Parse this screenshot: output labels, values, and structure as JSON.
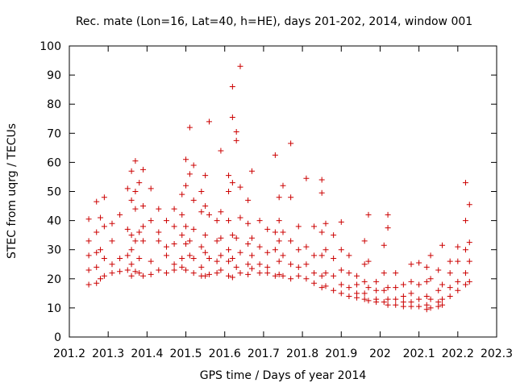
{
  "chart_data": {
    "type": "scatter",
    "title": "Rec. mate (Lon=16, Lat=40, h=HE), days 201-202, 2014, window 001",
    "xlabel": "GPS time / Days of year 2014",
    "ylabel": "STEC from uqrg / TECUs",
    "xlim": [
      201.2,
      202.3
    ],
    "ylim": [
      0,
      100
    ],
    "xticks": [
      "201.2",
      "201.3",
      "201.4",
      "201.5",
      "201.6",
      "201.7",
      "201.8",
      "201.9",
      "202",
      "202.1",
      "202.2",
      "202.3"
    ],
    "yticks": [
      "0",
      "10",
      "20",
      "30",
      "40",
      "50",
      "60",
      "70",
      "80",
      "90",
      "100"
    ],
    "grid": false,
    "legend": "none",
    "marker": "plus",
    "color": "#cc0000",
    "series": [
      {
        "points": [
          [
            201.25,
            40.5
          ],
          [
            201.25,
            33
          ],
          [
            201.25,
            28
          ],
          [
            201.25,
            23
          ],
          [
            201.25,
            18
          ],
          [
            201.27,
            46.5
          ],
          [
            201.27,
            36
          ],
          [
            201.27,
            29
          ],
          [
            201.27,
            24
          ],
          [
            201.27,
            18.5
          ],
          [
            201.28,
            41
          ],
          [
            201.28,
            30
          ],
          [
            201.28,
            20
          ],
          [
            201.29,
            48
          ],
          [
            201.29,
            38
          ],
          [
            201.29,
            27
          ],
          [
            201.29,
            21
          ],
          [
            201.31,
            39
          ],
          [
            201.31,
            33
          ],
          [
            201.31,
            25
          ],
          [
            201.31,
            22
          ],
          [
            201.33,
            42
          ],
          [
            201.33,
            27
          ],
          [
            201.33,
            22.5
          ],
          [
            201.35,
            51
          ],
          [
            201.35,
            37
          ],
          [
            201.35,
            28
          ],
          [
            201.35,
            23
          ],
          [
            201.36,
            57
          ],
          [
            201.36,
            47
          ],
          [
            201.36,
            35
          ],
          [
            201.36,
            30
          ],
          [
            201.36,
            25
          ],
          [
            201.36,
            21
          ],
          [
            201.37,
            60.5
          ],
          [
            201.37,
            50
          ],
          [
            201.37,
            44
          ],
          [
            201.37,
            33
          ],
          [
            201.37,
            22.5
          ],
          [
            201.38,
            53
          ],
          [
            201.38,
            36
          ],
          [
            201.38,
            27
          ],
          [
            201.38,
            22
          ],
          [
            201.39,
            57.5
          ],
          [
            201.39,
            45
          ],
          [
            201.39,
            38
          ],
          [
            201.39,
            33
          ],
          [
            201.39,
            21
          ],
          [
            201.41,
            51
          ],
          [
            201.41,
            40
          ],
          [
            201.41,
            26
          ],
          [
            201.41,
            21.5
          ],
          [
            201.43,
            44
          ],
          [
            201.43,
            36
          ],
          [
            201.43,
            33
          ],
          [
            201.43,
            23
          ],
          [
            201.45,
            40
          ],
          [
            201.45,
            31
          ],
          [
            201.45,
            28
          ],
          [
            201.45,
            22
          ],
          [
            201.47,
            44
          ],
          [
            201.47,
            38
          ],
          [
            201.47,
            32
          ],
          [
            201.47,
            25
          ],
          [
            201.47,
            23
          ],
          [
            201.49,
            49
          ],
          [
            201.49,
            42
          ],
          [
            201.49,
            35
          ],
          [
            201.49,
            27
          ],
          [
            201.49,
            24
          ],
          [
            201.5,
            61
          ],
          [
            201.5,
            52
          ],
          [
            201.5,
            38
          ],
          [
            201.5,
            32
          ],
          [
            201.5,
            23
          ],
          [
            201.51,
            72
          ],
          [
            201.51,
            56
          ],
          [
            201.51,
            33
          ],
          [
            201.51,
            28
          ],
          [
            201.52,
            59
          ],
          [
            201.52,
            47
          ],
          [
            201.52,
            37
          ],
          [
            201.52,
            27
          ],
          [
            201.52,
            22
          ],
          [
            201.54,
            50
          ],
          [
            201.54,
            43
          ],
          [
            201.54,
            31
          ],
          [
            201.54,
            24
          ],
          [
            201.54,
            21
          ],
          [
            201.55,
            55.5
          ],
          [
            201.55,
            45
          ],
          [
            201.55,
            35
          ],
          [
            201.55,
            29
          ],
          [
            201.55,
            21
          ],
          [
            201.56,
            74
          ],
          [
            201.56,
            42
          ],
          [
            201.56,
            27
          ],
          [
            201.56,
            21.5
          ],
          [
            201.58,
            40
          ],
          [
            201.58,
            33
          ],
          [
            201.58,
            26
          ],
          [
            201.58,
            22
          ],
          [
            201.59,
            64
          ],
          [
            201.59,
            43
          ],
          [
            201.59,
            34
          ],
          [
            201.59,
            28
          ],
          [
            201.59,
            23
          ],
          [
            201.61,
            55.5
          ],
          [
            201.61,
            50
          ],
          [
            201.61,
            40
          ],
          [
            201.61,
            30
          ],
          [
            201.61,
            26
          ],
          [
            201.61,
            21
          ],
          [
            201.62,
            86
          ],
          [
            201.62,
            75.5
          ],
          [
            201.62,
            53
          ],
          [
            201.62,
            35
          ],
          [
            201.62,
            27
          ],
          [
            201.62,
            20.5
          ],
          [
            201.63,
            70.5
          ],
          [
            201.63,
            67.5
          ],
          [
            201.63,
            34
          ],
          [
            201.63,
            24
          ],
          [
            201.64,
            93
          ],
          [
            201.64,
            51.5
          ],
          [
            201.64,
            41
          ],
          [
            201.64,
            29
          ],
          [
            201.64,
            22
          ],
          [
            201.66,
            47
          ],
          [
            201.66,
            39
          ],
          [
            201.66,
            32
          ],
          [
            201.66,
            25
          ],
          [
            201.66,
            21.5
          ],
          [
            201.67,
            57
          ],
          [
            201.67,
            34
          ],
          [
            201.67,
            28
          ],
          [
            201.67,
            23.5
          ],
          [
            201.69,
            40
          ],
          [
            201.69,
            31
          ],
          [
            201.69,
            25
          ],
          [
            201.69,
            22
          ],
          [
            201.71,
            37
          ],
          [
            201.71,
            29
          ],
          [
            201.71,
            24
          ],
          [
            201.71,
            22
          ],
          [
            201.73,
            62.5
          ],
          [
            201.73,
            36
          ],
          [
            201.73,
            30
          ],
          [
            201.73,
            21
          ],
          [
            201.74,
            48
          ],
          [
            201.74,
            40
          ],
          [
            201.74,
            33
          ],
          [
            201.74,
            26
          ],
          [
            201.74,
            21.5
          ],
          [
            201.75,
            52
          ],
          [
            201.75,
            36
          ],
          [
            201.75,
            28
          ],
          [
            201.75,
            21
          ],
          [
            201.77,
            66.5
          ],
          [
            201.77,
            48
          ],
          [
            201.77,
            33
          ],
          [
            201.77,
            25
          ],
          [
            201.77,
            20
          ],
          [
            201.79,
            38
          ],
          [
            201.79,
            30
          ],
          [
            201.79,
            24
          ],
          [
            201.79,
            21
          ],
          [
            201.81,
            54.5
          ],
          [
            201.81,
            31
          ],
          [
            201.81,
            25
          ],
          [
            201.81,
            20
          ],
          [
            201.83,
            38
          ],
          [
            201.83,
            28
          ],
          [
            201.83,
            22
          ],
          [
            201.83,
            18.5
          ],
          [
            201.85,
            54
          ],
          [
            201.85,
            49.5
          ],
          [
            201.85,
            36
          ],
          [
            201.85,
            28
          ],
          [
            201.85,
            21
          ],
          [
            201.85,
            17
          ],
          [
            201.86,
            39
          ],
          [
            201.86,
            30
          ],
          [
            201.86,
            22
          ],
          [
            201.86,
            17.5
          ],
          [
            201.88,
            35
          ],
          [
            201.88,
            27
          ],
          [
            201.88,
            21
          ],
          [
            201.88,
            16
          ],
          [
            201.9,
            39.5
          ],
          [
            201.9,
            30
          ],
          [
            201.9,
            23
          ],
          [
            201.9,
            18
          ],
          [
            201.9,
            15
          ],
          [
            201.92,
            28
          ],
          [
            201.92,
            22
          ],
          [
            201.92,
            17
          ],
          [
            201.92,
            14
          ],
          [
            201.94,
            21
          ],
          [
            201.94,
            18
          ],
          [
            201.94,
            15
          ],
          [
            201.94,
            13.5
          ],
          [
            201.96,
            33
          ],
          [
            201.96,
            25
          ],
          [
            201.96,
            19
          ],
          [
            201.96,
            15
          ],
          [
            201.96,
            13
          ],
          [
            201.97,
            42
          ],
          [
            201.97,
            26
          ],
          [
            201.97,
            17
          ],
          [
            201.97,
            12.5
          ],
          [
            201.99,
            19
          ],
          [
            201.99,
            16
          ],
          [
            201.99,
            13
          ],
          [
            201.99,
            12
          ],
          [
            202.01,
            31.5
          ],
          [
            202.01,
            22
          ],
          [
            202.01,
            16
          ],
          [
            202.01,
            12
          ],
          [
            202.02,
            42
          ],
          [
            202.02,
            37.5
          ],
          [
            202.02,
            17
          ],
          [
            202.02,
            13
          ],
          [
            202.02,
            11
          ],
          [
            202.04,
            22
          ],
          [
            202.04,
            17
          ],
          [
            202.04,
            13
          ],
          [
            202.04,
            11
          ],
          [
            202.06,
            18
          ],
          [
            202.06,
            14
          ],
          [
            202.06,
            12
          ],
          [
            202.06,
            10.5
          ],
          [
            202.08,
            25
          ],
          [
            202.08,
            19
          ],
          [
            202.08,
            15
          ],
          [
            202.08,
            12
          ],
          [
            202.08,
            10.5
          ],
          [
            202.1,
            25.5
          ],
          [
            202.1,
            18
          ],
          [
            202.1,
            13
          ],
          [
            202.1,
            10.5
          ],
          [
            202.12,
            24
          ],
          [
            202.12,
            19
          ],
          [
            202.12,
            14
          ],
          [
            202.12,
            11
          ],
          [
            202.12,
            9.5
          ],
          [
            202.13,
            28
          ],
          [
            202.13,
            20
          ],
          [
            202.13,
            13
          ],
          [
            202.13,
            10
          ],
          [
            202.15,
            23
          ],
          [
            202.15,
            16
          ],
          [
            202.15,
            12
          ],
          [
            202.15,
            10.5
          ],
          [
            202.16,
            31.5
          ],
          [
            202.16,
            18
          ],
          [
            202.16,
            13
          ],
          [
            202.16,
            11
          ],
          [
            202.18,
            26
          ],
          [
            202.18,
            22
          ],
          [
            202.18,
            17
          ],
          [
            202.18,
            14
          ],
          [
            202.2,
            31
          ],
          [
            202.2,
            26
          ],
          [
            202.2,
            19
          ],
          [
            202.2,
            16
          ],
          [
            202.22,
            53
          ],
          [
            202.22,
            40
          ],
          [
            202.22,
            30
          ],
          [
            202.22,
            22
          ],
          [
            202.22,
            18
          ],
          [
            202.23,
            45.5
          ],
          [
            202.23,
            32.5
          ],
          [
            202.23,
            26
          ],
          [
            202.23,
            19
          ]
        ]
      }
    ]
  }
}
